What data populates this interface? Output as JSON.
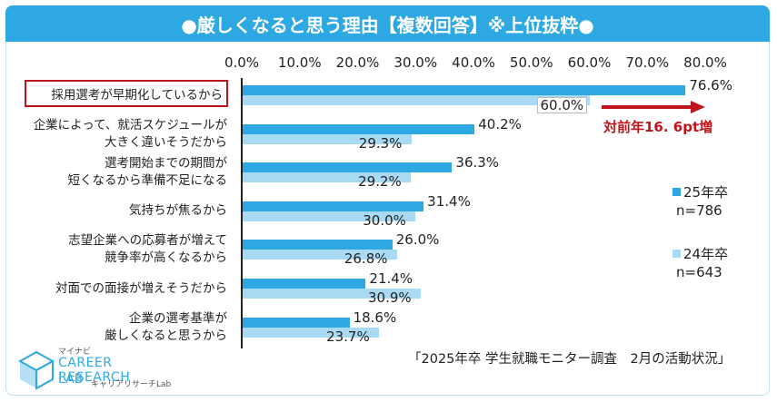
{
  "title": "●厳しくなると思う理由【複数回答】※上位抜粋●",
  "chart_data": {
    "type": "bar",
    "orientation": "horizontal",
    "ticks": [
      "0.0%",
      "10.0%",
      "20.0%",
      "30.0%",
      "40.0%",
      "50.0%",
      "60.0%",
      "70.0%",
      "80.0%"
    ],
    "xlim": [
      0,
      80
    ],
    "categories": [
      [
        "採用選考が早期化しているから"
      ],
      [
        "企業によって、就活スケジュールが",
        "大きく違いそうだから"
      ],
      [
        "選考開始までの期間が",
        "短くなるから準備不足になる"
      ],
      [
        "気持ちが焦るから"
      ],
      [
        "志望企業への応募者が増えて",
        "競争率が高くなるから"
      ],
      [
        "対面での面接が増えそうだから"
      ],
      [
        "企業の選考基準が",
        "厳しくなると思うから"
      ]
    ],
    "series": [
      {
        "name": "25年卒",
        "sample": "n=786",
        "color": "#2ea8e2",
        "values": [
          76.6,
          40.2,
          36.3,
          31.4,
          26.0,
          21.4,
          18.6
        ],
        "labels": [
          "76.6%",
          "40.2%",
          "36.3%",
          "31.4%",
          "26.0%",
          "21.4%",
          "18.6%"
        ]
      },
      {
        "name": "24年卒",
        "sample": "n=643",
        "color": "#a8daf3",
        "values": [
          60.0,
          29.3,
          29.2,
          30.0,
          26.8,
          30.9,
          23.7
        ],
        "labels": [
          "60.0%",
          "29.3%",
          "29.2%",
          "30.0%",
          "26.8%",
          "30.9%",
          "23.7%"
        ]
      }
    ],
    "annotation": "対前年16. 6pt増",
    "highlight_category_index": 0
  },
  "legend": {
    "s25_name": "25年卒",
    "s25_n": "n=786",
    "s24_name": "24年卒",
    "s24_n": "n=643"
  },
  "source": "「2025年卒 学生就職モニター調査　2月の活動状況」",
  "logo": {
    "top": "マイナビ",
    "main1": "CAREER RESEARCH",
    "main2": "LAB",
    "sub": "キャリアリサーチLab"
  },
  "colors": {
    "accent": "#2ea8e2",
    "light": "#a8daf3",
    "highlight": "#c0141c"
  }
}
